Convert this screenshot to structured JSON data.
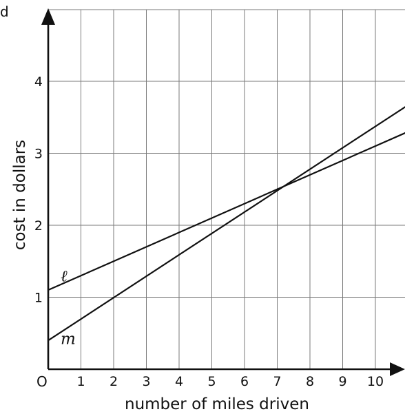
{
  "corner_fragment": "d",
  "chart_data": {
    "type": "line",
    "xlabel": "number of miles driven",
    "ylabel": "cost in dollars",
    "origin_label": "O",
    "x_ticks": [
      1,
      2,
      3,
      4,
      5,
      6,
      7,
      8,
      9,
      10
    ],
    "y_ticks": [
      1,
      2,
      3,
      4
    ],
    "xlim": [
      0,
      11.1
    ],
    "ylim": [
      0,
      4.9
    ],
    "grid": true,
    "series": [
      {
        "name": "ℓ",
        "x": [
          0,
          11.1
        ],
        "y": [
          1.1,
          3.32
        ]
      },
      {
        "name": "m",
        "x": [
          0,
          11.1
        ],
        "y": [
          0.4,
          3.7
        ]
      }
    ]
  }
}
